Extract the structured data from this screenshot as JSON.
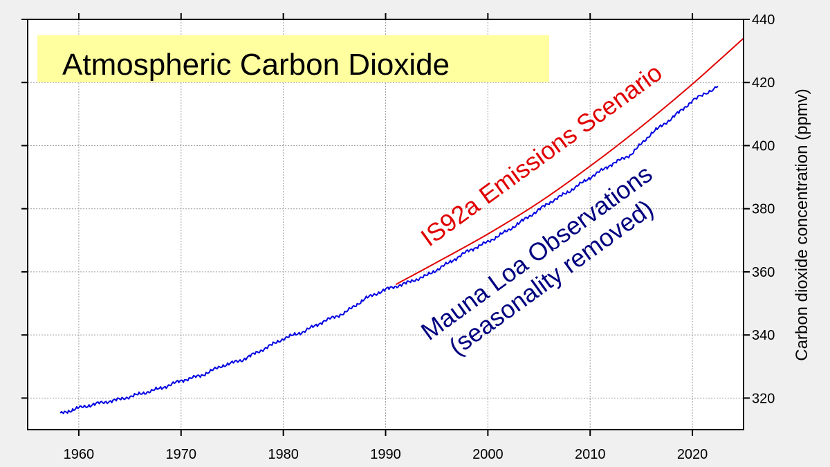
{
  "chart_data": {
    "type": "line",
    "title": "Atmospheric Carbon Dioxide",
    "ylabel": "Carbon dioxide concentration (ppmv)",
    "xlabel": "",
    "xlim": [
      1955,
      2025
    ],
    "ylim": [
      310,
      440
    ],
    "x_ticks": [
      1960,
      1970,
      1980,
      1990,
      2000,
      2010,
      2020
    ],
    "y_ticks": [
      320,
      340,
      360,
      380,
      400,
      420,
      440
    ],
    "grid": true,
    "y_axis_side": "right",
    "colors": {
      "background": "#f0f0f0",
      "plot_background": "#ffffff",
      "title_box": "#ffffa0",
      "observations": "#0000e0",
      "scenario": "#e00000",
      "observations_label": "#000080",
      "scenario_label": "#e00000"
    },
    "series": [
      {
        "name": "Mauna Loa Observations (seasonality removed)",
        "x": [
          1958.2,
          1960,
          1962,
          1964,
          1966,
          1968,
          1970,
          1972,
          1974,
          1976,
          1978,
          1980,
          1982,
          1984,
          1986,
          1988,
          1990,
          1992,
          1994,
          1996,
          1998,
          2000,
          2002,
          2004,
          2006,
          2008,
          2010,
          2012,
          2014,
          2016,
          2018,
          2020,
          2022.5
        ],
        "y": [
          315.0,
          316.9,
          318.4,
          319.6,
          321.3,
          323.1,
          325.5,
          327.2,
          330.2,
          332.1,
          335.4,
          338.8,
          341.1,
          344.4,
          347.0,
          351.5,
          354.4,
          356.4,
          358.8,
          362.5,
          366.5,
          369.5,
          373.2,
          377.5,
          381.9,
          385.6,
          389.9,
          393.9,
          397.2,
          403.9,
          408.7,
          414.2,
          418.8
        ]
      },
      {
        "name": "IS92a Emissions Scenario",
        "x": [
          1991,
          1995,
          2000,
          2005,
          2010,
          2015,
          2020,
          2025
        ],
        "y": [
          356,
          363,
          372,
          382,
          393.5,
          406,
          419.5,
          434
        ]
      }
    ],
    "annotations": [
      {
        "text": "IS92a Emissions Scenario",
        "color": "scenario_label"
      },
      {
        "text": "Mauna Loa Observations",
        "color": "observations_label"
      },
      {
        "text": "(seasonality removed)",
        "color": "observations_label"
      }
    ]
  }
}
